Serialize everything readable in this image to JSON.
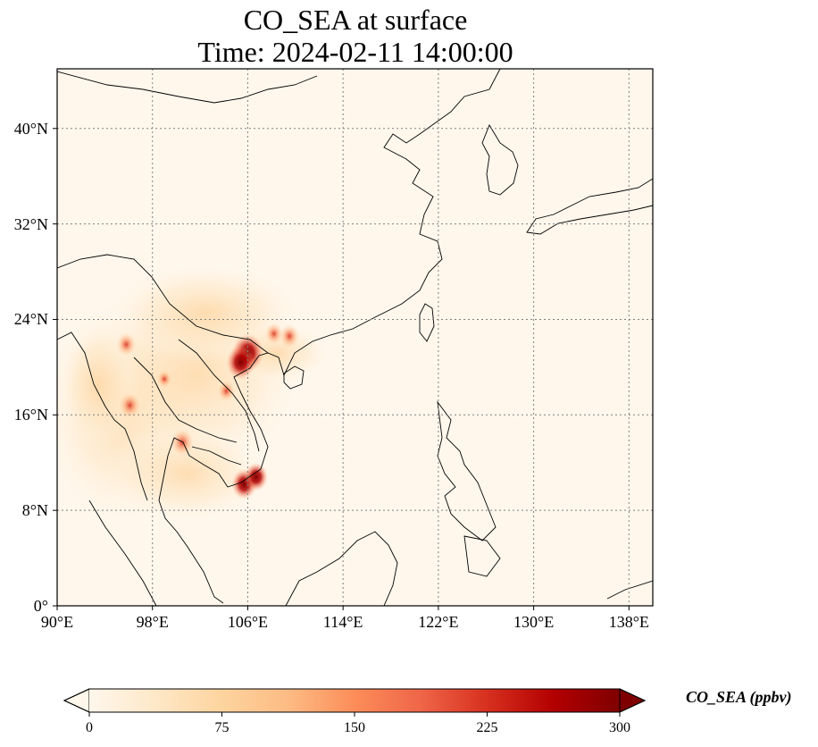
{
  "title": {
    "line1": "CO_SEA at surface",
    "line2": "Time: 2024-02-11 14:00:00"
  },
  "map": {
    "lon_range": [
      90,
      140
    ],
    "lat_range": [
      0,
      45
    ],
    "lon_ticks": [
      "90°E",
      "98°E",
      "106°E",
      "114°E",
      "122°E",
      "130°E",
      "138°E"
    ],
    "lat_ticks": [
      "0°",
      "8°N",
      "16°N",
      "24°N",
      "32°N",
      "40°N"
    ],
    "gridlines": true,
    "colormap": "OrRd",
    "hotspots": [
      {
        "lon": 106.0,
        "lat": 21.2,
        "value": 300
      },
      {
        "lon": 105.4,
        "lat": 20.4,
        "value": 260
      },
      {
        "lon": 105.7,
        "lat": 10.2,
        "value": 220
      },
      {
        "lon": 106.7,
        "lat": 10.8,
        "value": 200
      },
      {
        "lon": 100.5,
        "lat": 13.7,
        "value": 190
      },
      {
        "lon": 96.1,
        "lat": 16.8,
        "value": 170
      },
      {
        "lon": 95.8,
        "lat": 21.9,
        "value": 150
      },
      {
        "lon": 109.5,
        "lat": 22.6,
        "value": 150
      },
      {
        "lon": 108.2,
        "lat": 22.8,
        "value": 130
      },
      {
        "lon": 104.2,
        "lat": 18.0,
        "value": 120
      },
      {
        "lon": 99.0,
        "lat": 19.0,
        "value": 90
      }
    ]
  },
  "colorbar": {
    "label": "CO_SEA (ppbv)",
    "range": [
      0,
      300
    ],
    "ticks": [
      "0",
      "75",
      "150",
      "225",
      "300"
    ],
    "extend": "both",
    "colors": [
      "#fff7ec",
      "#fee8c8",
      "#fdd49e",
      "#fdbb84",
      "#fc8d59",
      "#ef6548",
      "#d7301f",
      "#b30000",
      "#7f0000"
    ]
  }
}
